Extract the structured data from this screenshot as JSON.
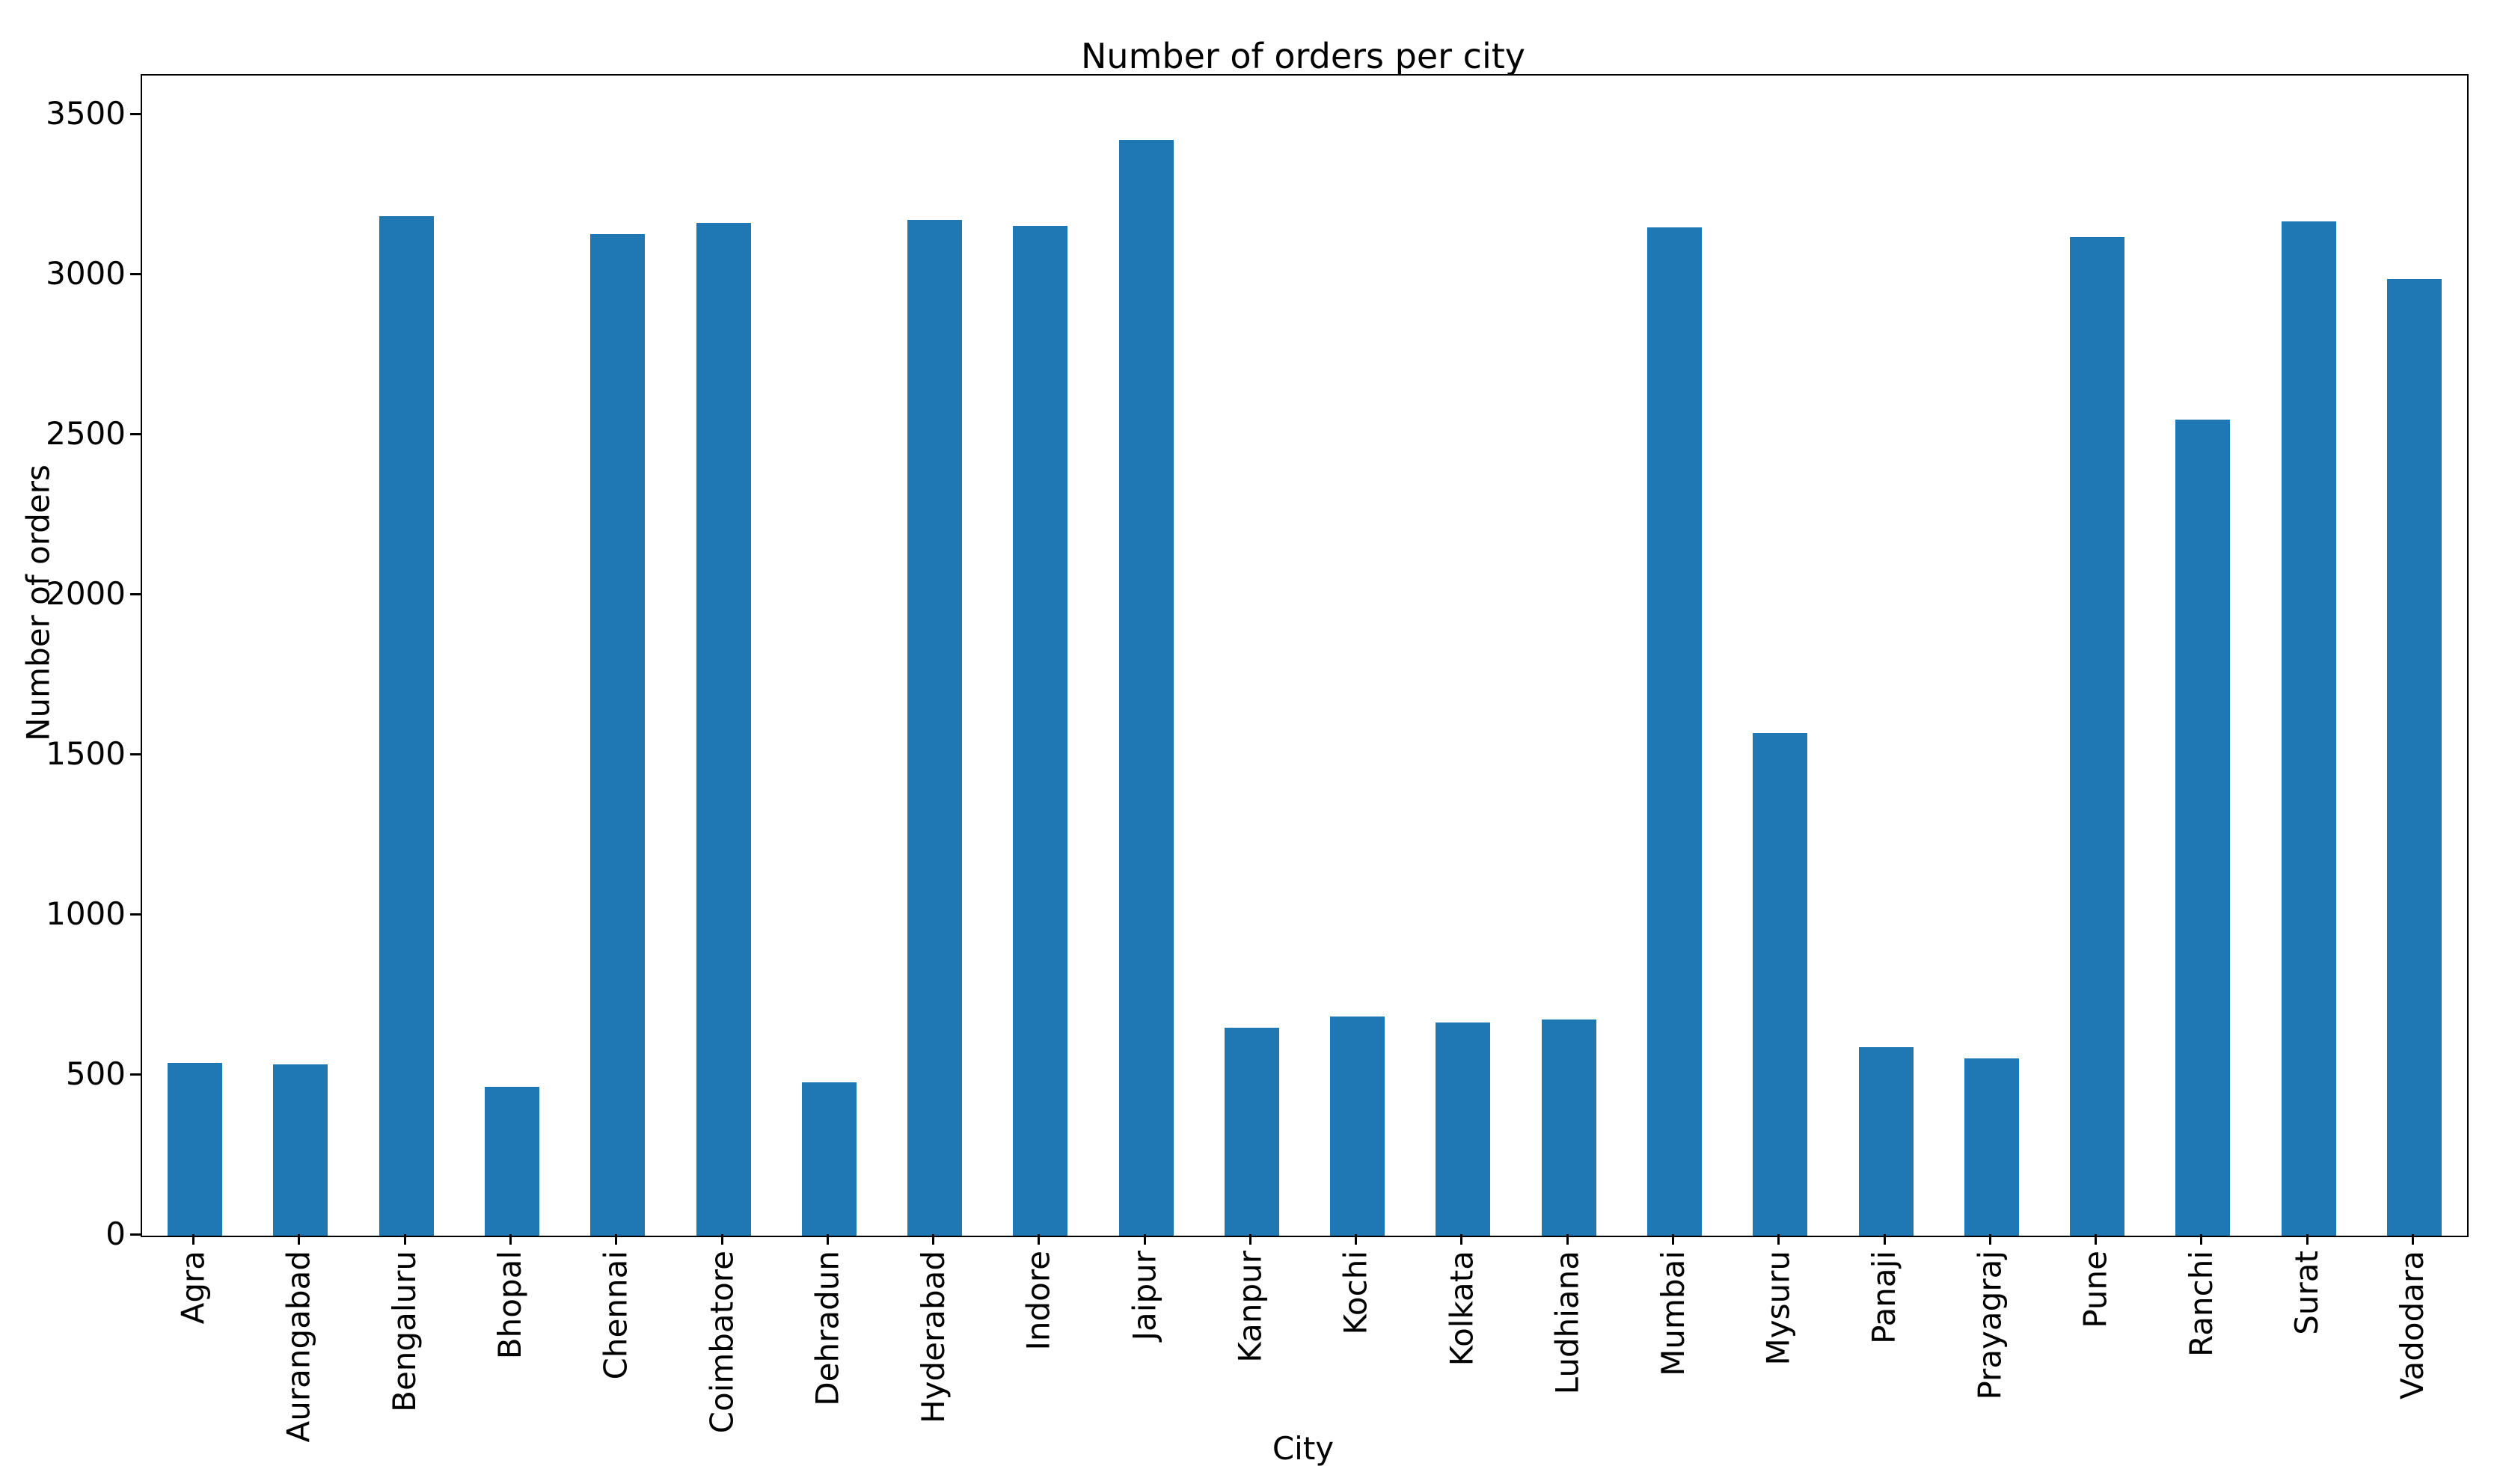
{
  "title": "Number of orders per city",
  "colors": {
    "bar": "#1f77b4",
    "text": "#000000",
    "spine": "#000000",
    "background": "#ffffff"
  },
  "chart_data": {
    "type": "bar",
    "title": "Number of orders per city",
    "xlabel": "City",
    "ylabel": "Number of orders",
    "categories": [
      "Agra",
      "Aurangabad",
      "Bengaluru",
      "Bhopal",
      "Chennai",
      "Coimbatore",
      "Dehradun",
      "Hyderabad",
      "Indore",
      "Jaipur",
      "Kanpur",
      "Kochi",
      "Kolkata",
      "Ludhiana",
      "Mumbai",
      "Mysuru",
      "Panaji",
      "Prayagraj",
      "Pune",
      "Ranchi",
      "Surat",
      "Vadodara"
    ],
    "values": [
      540,
      535,
      3185,
      465,
      3130,
      3165,
      480,
      3175,
      3155,
      3425,
      650,
      685,
      665,
      675,
      3150,
      1570,
      590,
      555,
      3120,
      2550,
      3170,
      2990
    ],
    "yticks": [
      0,
      500,
      1000,
      1500,
      2000,
      2500,
      3000,
      3500
    ],
    "ylim": [
      0,
      3625
    ],
    "bar_color": "#1f77b4",
    "bar_width_fraction": 0.517,
    "grid": false,
    "legend_position": "none"
  }
}
